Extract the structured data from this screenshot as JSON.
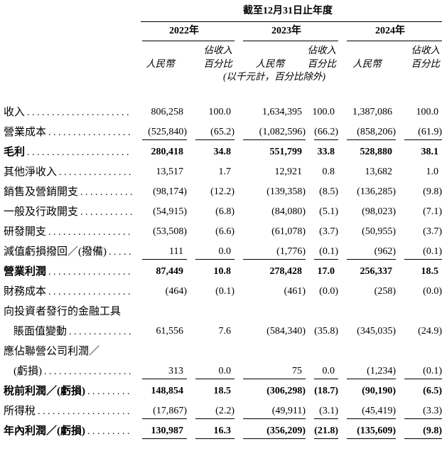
{
  "table": {
    "title": "截至12月31日止年度",
    "years": [
      "2022年",
      "2023年",
      "2024年"
    ],
    "subheader": {
      "rmb": "人民幣",
      "pct_line1": "佔收入",
      "pct_line2": "百分比"
    },
    "note": "(以千元計，百分比除外)",
    "rows": [
      {
        "label": "收入",
        "leader": true,
        "bold": false,
        "rule_below": false,
        "indent": false,
        "values": [
          "806,258",
          "100.0",
          "1,634,395",
          "100.0",
          "1,387,086",
          "100.0"
        ]
      },
      {
        "label": "營業成本",
        "leader": true,
        "bold": false,
        "rule_below": true,
        "indent": false,
        "values": [
          "(525,840)",
          "(65.2)",
          "(1,082,596)",
          "(66.2)",
          "(858,206)",
          "(61.9)"
        ]
      },
      {
        "label": "毛利",
        "leader": true,
        "bold": true,
        "rule_below": false,
        "indent": false,
        "values": [
          "280,418",
          "34.8",
          "551,799",
          "33.8",
          "528,880",
          "38.1"
        ]
      },
      {
        "label": "其他淨收入",
        "leader": true,
        "bold": false,
        "rule_below": false,
        "indent": false,
        "values": [
          "13,517",
          "1.7",
          "12,921",
          "0.8",
          "13,682",
          "1.0"
        ]
      },
      {
        "label": "銷售及營銷開支",
        "leader": true,
        "bold": false,
        "rule_below": false,
        "indent": false,
        "values": [
          "(98,174)",
          "(12.2)",
          "(139,358)",
          "(8.5)",
          "(136,285)",
          "(9.8)"
        ]
      },
      {
        "label": "一般及行政開支",
        "leader": true,
        "bold": false,
        "rule_below": false,
        "indent": false,
        "values": [
          "(54,915)",
          "(6.8)",
          "(84,080)",
          "(5.1)",
          "(98,023)",
          "(7.1)"
        ]
      },
      {
        "label": "研發開支",
        "leader": true,
        "bold": false,
        "rule_below": false,
        "indent": false,
        "values": [
          "(53,508)",
          "(6.6)",
          "(61,078)",
          "(3.7)",
          "(50,955)",
          "(3.7)"
        ]
      },
      {
        "label": "減值虧損撥回／(撥備)",
        "leader": true,
        "bold": false,
        "rule_below": true,
        "indent": false,
        "values": [
          "111",
          "0.0",
          "(1,776)",
          "(0.1)",
          "(962)",
          "(0.1)"
        ]
      },
      {
        "label": "營業利潤",
        "leader": true,
        "bold": true,
        "rule_below": false,
        "indent": false,
        "values": [
          "87,449",
          "10.8",
          "278,428",
          "17.0",
          "256,337",
          "18.5"
        ]
      },
      {
        "label": "財務成本",
        "leader": true,
        "bold": false,
        "rule_below": false,
        "indent": false,
        "values": [
          "(464)",
          "(0.1)",
          "(461)",
          "(0.0)",
          "(258)",
          "(0.0)"
        ]
      },
      {
        "label": "向投資者發行的金融工具",
        "leader": false,
        "bold": false,
        "rule_below": false,
        "indent": false,
        "values": []
      },
      {
        "label": "賬面值變動",
        "leader": true,
        "bold": false,
        "rule_below": false,
        "indent": true,
        "values": [
          "61,556",
          "7.6",
          "(584,340)",
          "(35.8)",
          "(345,035)",
          "(24.9)"
        ]
      },
      {
        "label": "應佔聯營公司利潤／",
        "leader": false,
        "bold": false,
        "rule_below": false,
        "indent": false,
        "values": []
      },
      {
        "label": "(虧損)",
        "leader": true,
        "bold": false,
        "rule_below": true,
        "indent": true,
        "values": [
          "313",
          "0.0",
          "75",
          "0.0",
          "(1,234)",
          "(0.1)"
        ]
      },
      {
        "label": "稅前利潤／(虧損)",
        "leader": true,
        "bold": true,
        "rule_below": false,
        "indent": false,
        "values": [
          "148,854",
          "18.5",
          "(306,298)",
          "(18.7)",
          "(90,190)",
          "(6.5)"
        ]
      },
      {
        "label": "所得稅",
        "leader": true,
        "bold": false,
        "rule_below": true,
        "indent": false,
        "values": [
          "(17,867)",
          "(2.2)",
          "(49,911)",
          "(3.1)",
          "(45,419)",
          "(3.3)"
        ]
      },
      {
        "label": "年內利潤／(虧損)",
        "leader": true,
        "bold": true,
        "rule_below": true,
        "indent": false,
        "values": [
          "130,987",
          "16.3",
          "(356,209)",
          "(21.8)",
          "(135,609)",
          "(9.8)"
        ]
      }
    ]
  }
}
